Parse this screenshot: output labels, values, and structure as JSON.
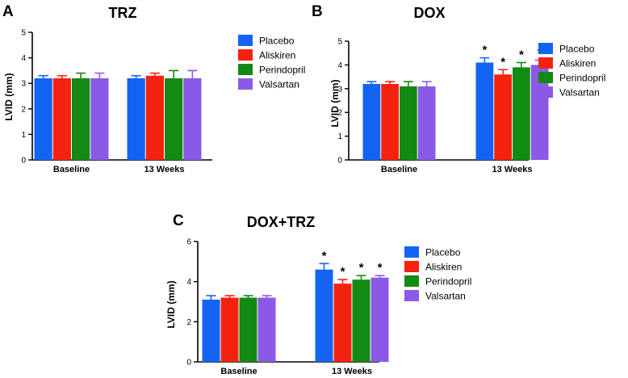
{
  "series_colors": {
    "Placebo": "#1464f4",
    "Aliskiren": "#f4230f",
    "Perindopril": "#138a13",
    "Valsartan": "#8a5ae6"
  },
  "chart_data": [
    {
      "panel_label": "A",
      "type": "bar",
      "title": "TRZ",
      "xlabel": "",
      "ylabel": "LVID  (mm)",
      "ylim": [
        0,
        5
      ],
      "yticks": [
        "0",
        "1",
        "2",
        "3",
        "4",
        "5"
      ],
      "categories": [
        "Baseline",
        "13 Weeks"
      ],
      "legend_position": "right",
      "series": [
        {
          "name": "Placebo",
          "values": [
            3.2,
            3.2
          ],
          "errors": [
            0.1,
            0.1
          ],
          "significance": [
            "",
            ""
          ]
        },
        {
          "name": "Aliskiren",
          "values": [
            3.2,
            3.3
          ],
          "errors": [
            0.1,
            0.1
          ],
          "significance": [
            "",
            ""
          ]
        },
        {
          "name": "Perindopril",
          "values": [
            3.2,
            3.2
          ],
          "errors": [
            0.2,
            0.3
          ],
          "significance": [
            "",
            ""
          ]
        },
        {
          "name": "Valsartan",
          "values": [
            3.2,
            3.2
          ],
          "errors": [
            0.2,
            0.3
          ],
          "significance": [
            "",
            ""
          ]
        }
      ]
    },
    {
      "panel_label": "B",
      "type": "bar",
      "title": "DOX",
      "xlabel": "",
      "ylabel": "LVID  (mm)",
      "ylim": [
        0,
        5
      ],
      "yticks": [
        "0",
        "1",
        "2",
        "3",
        "4",
        "5"
      ],
      "categories": [
        "Baseline",
        "13 Weeks"
      ],
      "legend_position": "right",
      "series": [
        {
          "name": "Placebo",
          "values": [
            3.2,
            4.1
          ],
          "errors": [
            0.1,
            0.2
          ],
          "significance": [
            "",
            "*"
          ]
        },
        {
          "name": "Aliskiren",
          "values": [
            3.2,
            3.6
          ],
          "errors": [
            0.1,
            0.2
          ],
          "significance": [
            "",
            "*"
          ]
        },
        {
          "name": "Perindopril",
          "values": [
            3.1,
            3.9
          ],
          "errors": [
            0.2,
            0.2
          ],
          "significance": [
            "",
            "*"
          ]
        },
        {
          "name": "Valsartan",
          "values": [
            3.1,
            4.0
          ],
          "errors": [
            0.2,
            0.2
          ],
          "significance": [
            "",
            "*"
          ]
        }
      ]
    },
    {
      "panel_label": "C",
      "type": "bar",
      "title": "DOX+TRZ",
      "xlabel": "",
      "ylabel": "LVID  (mm)",
      "ylim": [
        0,
        6
      ],
      "yticks": [
        "0",
        "2",
        "4",
        "6"
      ],
      "categories": [
        "Baseline",
        "13 Weeks"
      ],
      "legend_position": "right",
      "series": [
        {
          "name": "Placebo",
          "values": [
            3.1,
            4.6
          ],
          "errors": [
            0.2,
            0.3
          ],
          "significance": [
            "",
            "*"
          ]
        },
        {
          "name": "Aliskiren",
          "values": [
            3.2,
            3.9
          ],
          "errors": [
            0.1,
            0.2
          ],
          "significance": [
            "",
            "*"
          ]
        },
        {
          "name": "Perindopril",
          "values": [
            3.2,
            4.1
          ],
          "errors": [
            0.1,
            0.2
          ],
          "significance": [
            "",
            "*"
          ]
        },
        {
          "name": "Valsartan",
          "values": [
            3.2,
            4.2
          ],
          "errors": [
            0.1,
            0.1
          ],
          "significance": [
            "",
            "*"
          ]
        }
      ]
    }
  ]
}
